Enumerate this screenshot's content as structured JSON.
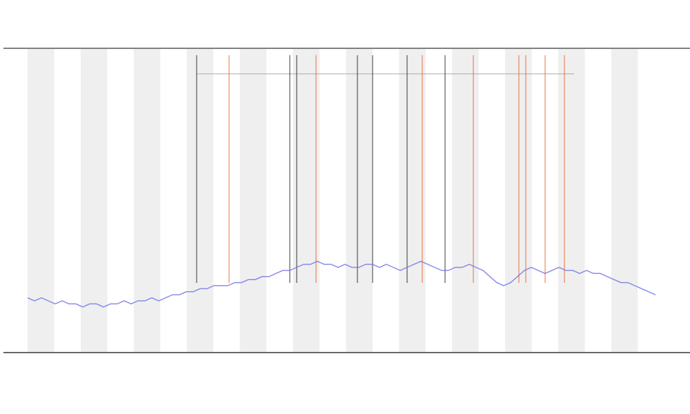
{
  "chart_data": {
    "type": "line",
    "xlim": [
      0,
      91
    ],
    "ylim": [
      0,
      100
    ],
    "series": [
      {
        "color": "#6f6fe6",
        "x": [
          0,
          1,
          2,
          3,
          4,
          5,
          6,
          7,
          8,
          9,
          10,
          11,
          12,
          13,
          14,
          15,
          16,
          17,
          18,
          19,
          20,
          21,
          22,
          23,
          24,
          25,
          26,
          27,
          28,
          29,
          30,
          31,
          32,
          33,
          34,
          35,
          36,
          37,
          38,
          39,
          40,
          41,
          42,
          43,
          44,
          45,
          46,
          47,
          48,
          49,
          50,
          51,
          52,
          53,
          54,
          55,
          56,
          57,
          58,
          59,
          60,
          61,
          62,
          63,
          64,
          65,
          66,
          67,
          68,
          69,
          70,
          71,
          72,
          73,
          74,
          75,
          76,
          77,
          78,
          79,
          80,
          81,
          82,
          83,
          84,
          85,
          86,
          87,
          88,
          89,
          90,
          91
        ],
        "values": [
          18,
          17,
          18,
          17,
          16,
          17,
          16,
          16,
          15,
          16,
          16,
          15,
          16,
          16,
          17,
          16,
          17,
          17,
          18,
          17,
          18,
          19,
          19,
          20,
          20,
          21,
          21,
          22,
          22,
          22,
          23,
          23,
          24,
          24,
          25,
          25,
          26,
          27,
          27,
          28,
          29,
          29,
          30,
          29,
          29,
          28,
          29,
          28,
          28,
          29,
          29,
          28,
          29,
          28,
          27,
          28,
          29,
          30,
          29,
          28,
          27,
          27,
          28,
          28,
          29,
          28,
          27,
          25,
          23,
          22,
          23,
          25,
          27,
          28,
          27,
          26,
          27,
          28,
          27,
          27,
          26,
          27,
          26,
          26,
          25,
          24,
          23,
          23,
          22,
          21,
          20,
          19
        ]
      }
    ],
    "events": [
      {
        "x": 24.5,
        "color": "#222222"
      },
      {
        "x": 29.2,
        "color": "#e8622c"
      },
      {
        "x": 38,
        "color": "#222222"
      },
      {
        "x": 39,
        "color": "#222222"
      },
      {
        "x": 41.8,
        "color": "#e8622c"
      },
      {
        "x": 47.8,
        "color": "#222222"
      },
      {
        "x": 50,
        "color": "#222222"
      },
      {
        "x": 55,
        "color": "#222222"
      },
      {
        "x": 57.2,
        "color": "#e8622c"
      },
      {
        "x": 60.5,
        "color": "#222222"
      },
      {
        "x": 64.6,
        "color": "#e8622c"
      },
      {
        "x": 71.2,
        "color": "#e8622c"
      },
      {
        "x": 72.2,
        "color": "#e8622c"
      },
      {
        "x": 75,
        "color": "#e8622c"
      },
      {
        "x": 77.8,
        "color": "#e8622c"
      }
    ]
  }
}
